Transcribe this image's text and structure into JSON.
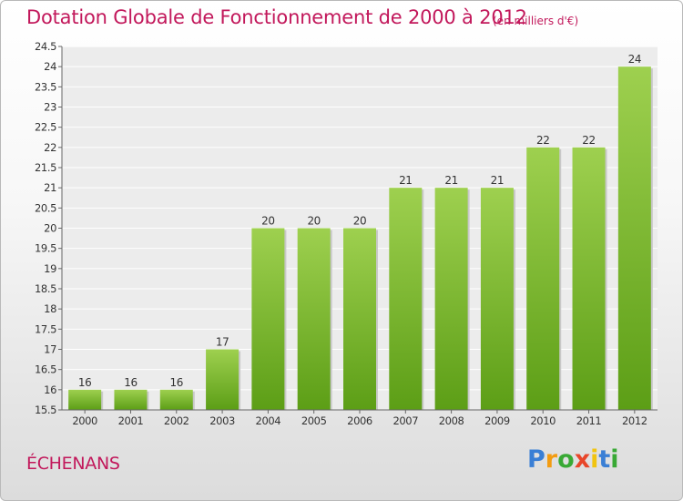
{
  "header": {
    "title": "Dotation Globale de Fonctionnement de 2000 à 2012",
    "unit": "(en milliers d'€)"
  },
  "commune": "ÉCHENANS",
  "logo": {
    "text": "Proxiti",
    "letters": [
      "P",
      "r",
      "o",
      "x",
      "i",
      "t",
      "i"
    ],
    "colors": [
      "#3a7fd5",
      "#f39c12",
      "#39a935",
      "#e8462a",
      "#f1c40f",
      "#3a7fd5",
      "#39a935"
    ]
  },
  "chart_data": {
    "type": "bar",
    "categories": [
      "2000",
      "2001",
      "2002",
      "2003",
      "2004",
      "2005",
      "2006",
      "2007",
      "2008",
      "2009",
      "2010",
      "2011",
      "2012"
    ],
    "values": [
      16,
      16,
      16,
      17,
      20,
      20,
      20,
      21,
      21,
      21,
      22,
      22,
      24
    ],
    "value_labels": [
      "16",
      "16",
      "16",
      "17",
      "20",
      "20",
      "20",
      "21",
      "21",
      "21",
      "22",
      "22",
      "24"
    ],
    "ylim": [
      15.5,
      24.5
    ],
    "yticks": [
      "15.5",
      "16",
      "16.5",
      "17",
      "17.5",
      "18",
      "18.5",
      "19",
      "19.5",
      "20",
      "20.5",
      "21",
      "21.5",
      "22",
      "22.5",
      "23",
      "23.5",
      "24",
      "24.5"
    ],
    "grid": true,
    "bar_color_top": "#9ed04f",
    "bar_color_bottom": "#5c9e16"
  }
}
